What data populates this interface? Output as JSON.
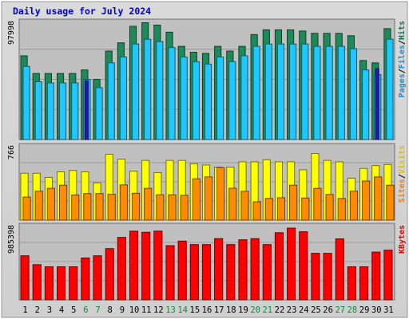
{
  "chart_data": {
    "type": "bar",
    "title": "Daily usage for July 2024",
    "categories": [
      "1",
      "2",
      "3",
      "4",
      "5",
      "6",
      "7",
      "8",
      "9",
      "10",
      "11",
      "12",
      "13",
      "14",
      "15",
      "16",
      "17",
      "18",
      "19",
      "20",
      "21",
      "22",
      "23",
      "24",
      "25",
      "26",
      "27",
      "28",
      "29",
      "30",
      "31"
    ],
    "weekend_days": [
      "6",
      "7",
      "13",
      "14",
      "20",
      "21",
      "27",
      "28"
    ],
    "panels": [
      {
        "id": "pages-files-hits",
        "ymax_label": "97998",
        "ymax": 97998,
        "legend": [
          {
            "label": "Pages",
            "color": "#1890d8"
          },
          {
            "label": "Files",
            "color": "#1890d8"
          },
          {
            "label": "Hits",
            "color": "#0f7a50"
          }
        ],
        "series": [
          {
            "name": "Hits",
            "color": "#1e8a5a",
            "values": [
              71000,
              56000,
              56000,
              56000,
              56000,
              59000,
              51000,
              75000,
              82000,
              96000,
              99000,
              97000,
              91000,
              79000,
              74000,
              73000,
              79000,
              75000,
              79000,
              89000,
              93000,
              93000,
              93000,
              92000,
              90000,
              90000,
              90000,
              88000,
              67000,
              65000,
              94000
            ]
          },
          {
            "name": "Files",
            "color": "#1ec8ff",
            "values": [
              62000,
              49000,
              48000,
              48000,
              48000,
              51000,
              44000,
              65000,
              70000,
              81000,
              85000,
              83000,
              78000,
              70000,
              66000,
              64000,
              70000,
              66000,
              71000,
              79000,
              81000,
              81000,
              81000,
              81000,
              79000,
              79000,
              79000,
              77000,
              59000,
              55000,
              85000
            ]
          },
          {
            "name": "Pages",
            "color": "#1a1acc",
            "values": [
              null,
              null,
              null,
              null,
              null,
              50000,
              null,
              null,
              null,
              null,
              null,
              null,
              null,
              null,
              null,
              null,
              null,
              null,
              null,
              null,
              null,
              null,
              null,
              null,
              null,
              null,
              null,
              null,
              null,
              60000,
              null
            ]
          }
        ]
      },
      {
        "id": "visits-sites",
        "ymax_label": "766",
        "ymax": 766,
        "legend": [
          {
            "label": "Sites",
            "color": "#f08000"
          },
          {
            "label": "Visits",
            "color": "#e0c000"
          }
        ],
        "series": [
          {
            "name": "Visits",
            "color": "#ffff00",
            "values": [
              500,
              500,
              456,
              515,
              530,
              515,
              398,
              703,
              651,
              522,
              637,
              507,
              637,
              637,
              603,
              588,
              566,
              566,
              622,
              622,
              644,
              622,
              622,
              537,
              711,
              637,
              622,
              448,
              551,
              581,
              593
            ]
          },
          {
            "name": "Sites",
            "color": "#ff8c00",
            "values": [
              246,
              309,
              339,
              373,
              268,
              283,
              283,
              276,
              376,
              286,
              339,
              270,
              270,
              264,
              441,
              461,
              561,
              340,
              308,
              195,
              231,
              239,
              373,
              236,
              339,
              274,
              231,
              309,
              417,
              461,
              373
            ]
          }
        ]
      },
      {
        "id": "kbytes",
        "ymax_label": "985398",
        "ymax": 985398,
        "legend": [
          {
            "label": "KBytes",
            "color": "#e00000"
          }
        ],
        "series": [
          {
            "name": "KBytes",
            "color": "#ff0000",
            "values": [
              605000,
              484000,
              454000,
              454000,
              454000,
              575000,
              605000,
              704000,
              858000,
              943000,
              928000,
              944000,
              744000,
              807000,
              759000,
              759000,
              841000,
              759000,
              825000,
              841000,
              759000,
              922000,
              985000,
              935000,
              639000,
              639000,
              838000,
              454000,
              454000,
              656000,
              682000
            ]
          }
        ]
      }
    ],
    "grid": true,
    "legend_placement": "right"
  }
}
